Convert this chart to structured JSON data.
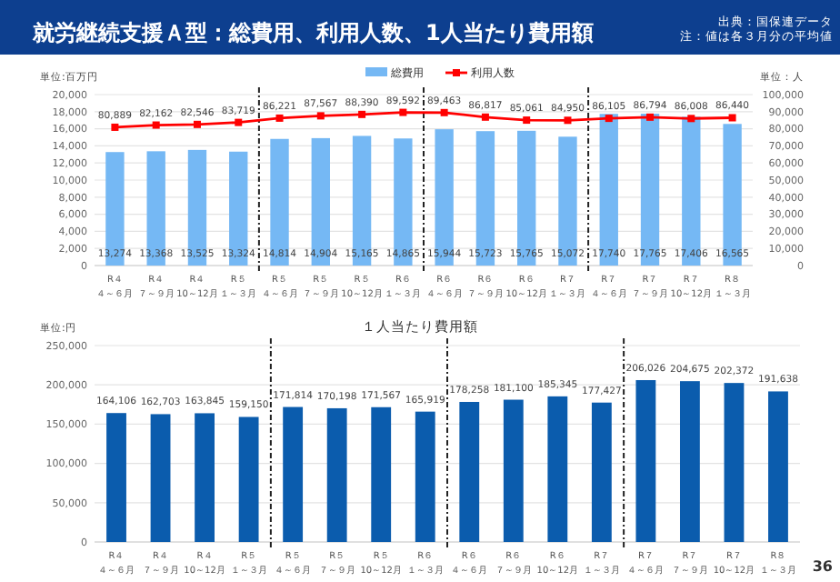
{
  "chart_data": [
    {
      "type": "bar",
      "title": "就労継続支援Ａ型：総費用、利用人数、1人当たり費用額",
      "annotations": [
        "出典：国保連データ",
        "注：値は各３月分の平均値"
      ],
      "ylabel": "単位:百万円",
      "y2label": "単位：人",
      "legend": "top",
      "grid": "y",
      "marker": "square",
      "categories": [
        "R４４～６月",
        "R４７～９月",
        "R４10～12月",
        "R５１～３月",
        "R５４～６月",
        "R５７～９月",
        "R５10～12月",
        "R６１～３月",
        "R６４～６月",
        "R６７～９月",
        "R６10～12月",
        "R７１～３月",
        "R７４～６月",
        "R７７～９月",
        "R７10～12月",
        "R８１～３月"
      ],
      "ylim": [
        0,
        20000
      ],
      "yticks": [
        0,
        {
          "value": 2000,
          "label": "2,000"
        },
        {
          "value": 4000,
          "label": "4,000"
        },
        {
          "value": 6000,
          "label": "6,000"
        },
        {
          "value": 8000,
          "label": "8,000"
        },
        {
          "value": 10000,
          "label": "10,000"
        },
        {
          "value": 12000,
          "label": "12,000"
        },
        {
          "value": 14000,
          "label": "14,000"
        },
        {
          "value": 16000,
          "label": "16,000"
        },
        {
          "value": 18000,
          "label": "18,000"
        },
        {
          "value": 20000,
          "label": "20,000"
        }
      ],
      "y2lim": [
        0,
        100000
      ],
      "y2ticks": [
        0,
        {
          "value": 10000,
          "label": "10,000"
        },
        {
          "value": 20000,
          "label": "20,000"
        },
        {
          "value": 30000,
          "label": "30,000"
        },
        {
          "value": 40000,
          "label": "40,000"
        },
        {
          "value": 50000,
          "label": "50,000"
        },
        {
          "value": 60000,
          "label": "60,000"
        },
        {
          "value": 70000,
          "label": "70,000"
        },
        {
          "value": 80000,
          "label": "80,000"
        },
        {
          "value": 90000,
          "label": "90,000"
        },
        {
          "value": 100000,
          "label": "100,000"
        }
      ],
      "series": [
        {
          "name": "総費用",
          "type": "bar",
          "color": "#75b8f4",
          "values": [
            13274,
            13368,
            13525,
            13324,
            14814,
            14904,
            15165,
            14865,
            15944,
            15723,
            15765,
            15072,
            17740,
            17765,
            17406,
            16565
          ],
          "value_labels": [
            "13,274",
            "13,368",
            "13,525",
            "13,324",
            "14,814",
            "14,904",
            "15,165",
            "14,865",
            "15,944",
            "15,723",
            "15,765",
            "15,072",
            "17,740",
            "17,765",
            "17,406",
            "16,565"
          ]
        },
        {
          "name": "利用人数",
          "type": "line",
          "axis": "y2",
          "color": "#ff0000",
          "values": [
            80889,
            82162,
            82546,
            83719,
            86221,
            87567,
            88390,
            89592,
            89463,
            86817,
            85061,
            84950,
            86105,
            86794,
            86008,
            86440
          ],
          "value_labels": [
            "80,889",
            "82,162",
            "82,546",
            "83,719",
            "86,221",
            "87,567",
            "88,390",
            "89,592",
            "89,463",
            "86,817",
            "85,061",
            "84,950",
            "86,105",
            "86,794",
            "86,008",
            "86,440"
          ]
        }
      ]
    },
    {
      "type": "bar",
      "title": "１人当たり費用額",
      "ylabel": "単位:円",
      "grid": "y",
      "annotations": [
        "36"
      ],
      "categories": [
        "R４４～６月",
        "R４７～９月",
        "R４10～12月",
        "R５１～３月",
        "R５４～６月",
        "R５７～９月",
        "R５10～12月",
        "R６１～３月",
        "R６４～６月",
        "R６７～９月",
        "R６10～12月",
        "R７１～３月",
        "R７４～６月",
        "R７７～９月",
        "R７10～12月",
        "R８１～３月"
      ],
      "ylim": [
        0,
        250000
      ],
      "yticks": [
        0,
        {
          "value": 50000,
          "label": "50,000"
        },
        {
          "value": 100000,
          "label": "100,000"
        },
        {
          "value": 150000,
          "label": "150,000"
        },
        {
          "value": 200000,
          "label": "200,000"
        },
        {
          "value": 250000,
          "label": "250,000"
        }
      ],
      "series": [
        {
          "color": "#0b5cad",
          "values": [
            164106,
            162703,
            163845,
            159150,
            171814,
            170198,
            171567,
            165919,
            178258,
            181100,
            185345,
            177427,
            206026,
            204675,
            202372,
            191638
          ],
          "value_labels": [
            "164,106",
            "162,703",
            "163,845",
            "159,150",
            "171,814",
            "170,198",
            "171,567",
            "165,919",
            "178,258",
            "181,100",
            "185,345",
            "177,427",
            "206,026",
            "204,675",
            "202,372",
            "191,638"
          ]
        }
      ]
    }
  ]
}
